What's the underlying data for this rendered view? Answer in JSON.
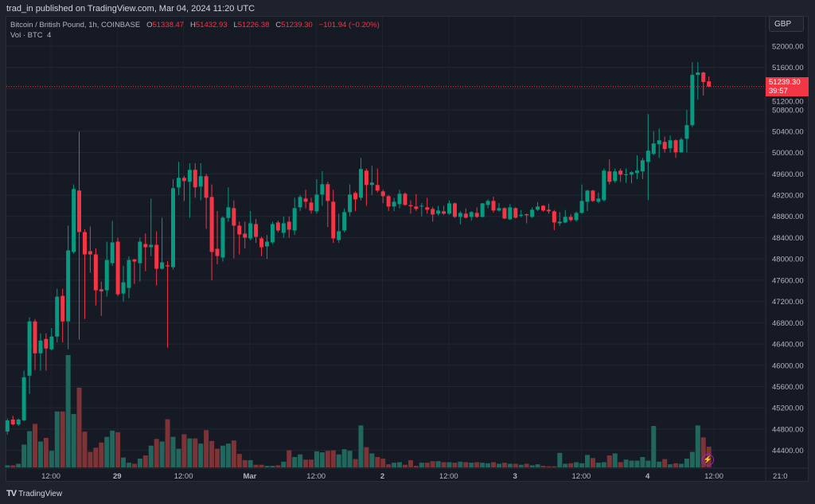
{
  "header": {
    "published": "trad_in published on TradingView.com, Mar 04, 2024 11:20 UTC"
  },
  "legend": {
    "symbol": "Bitcoin / British Pound, 1h, COINBASE",
    "o_label": "O",
    "o": "51338.47",
    "h_label": "H",
    "h": "51432.93",
    "l_label": "L",
    "l": "51226.38",
    "c_label": "C",
    "c": "51239.30",
    "change": "−101.94 (−0.20%)",
    "vol_label": "Vol · BTC",
    "vol": "4"
  },
  "currency_button": "GBP",
  "last_price": {
    "price": "51239.30",
    "countdown": "39:57"
  },
  "footer": {
    "brand": "TradingView",
    "brand_icon": "tradingview-logo-icon"
  },
  "colors": {
    "up": "#089981",
    "down": "#f23645",
    "up_vol": "#22675e",
    "down_vol": "#7d3436",
    "background": "#161a25",
    "alert_icon": "#9c27b0"
  },
  "icons": {
    "replay": "lightning-icon"
  },
  "chart_data": {
    "type": "candlestick",
    "interval": "1h",
    "ylim": [
      44250,
      52300
    ],
    "grid": true,
    "y_ticks": [
      52000,
      51600,
      51200,
      50800,
      50400,
      50000,
      49600,
      49200,
      48800,
      48400,
      48000,
      47600,
      47200,
      46800,
      46400,
      46000,
      45600,
      45200,
      44800,
      44400
    ],
    "y_tick_labels": [
      "52000.00",
      "51600.00",
      "51200.00",
      "50800.00",
      "50400.00",
      "50000.00",
      "49600.00",
      "49200.00",
      "48800.00",
      "48400.00",
      "48000.00",
      "47600.00",
      "47200.00",
      "46800.00",
      "46400.00",
      "46000.00",
      "45600.00",
      "45200.00",
      "44800.00",
      "44400.00"
    ],
    "x_tick_labels": [
      "12:00",
      "29",
      "12:00",
      "Mar",
      "12:00",
      "2",
      "12:00",
      "3",
      "12:00",
      "4",
      "12:00",
      "21:0"
    ],
    "x_tick_hours": [
      8,
      20,
      32,
      44,
      56,
      68,
      80,
      92,
      104,
      116,
      128,
      137
    ],
    "candles": [
      [
        44755,
        45000,
        44700,
        44965
      ],
      [
        44980,
        45050,
        44870,
        44890
      ],
      [
        44890,
        45000,
        44860,
        44980
      ],
      [
        44965,
        45900,
        44950,
        45775
      ],
      [
        45805,
        46900,
        45460,
        46825
      ],
      [
        46825,
        46870,
        45910,
        46225
      ],
      [
        46225,
        46600,
        45900,
        46465
      ],
      [
        46495,
        46600,
        45900,
        46315
      ],
      [
        46300,
        46700,
        46280,
        46540
      ],
      [
        46540,
        47440,
        46430,
        47290
      ],
      [
        47305,
        47440,
        46430,
        46825
      ],
      [
        46825,
        48625,
        46300,
        48160
      ],
      [
        48130,
        49400,
        48100,
        49315
      ],
      [
        49285,
        50395,
        46480,
        48505
      ],
      [
        48505,
        48560,
        46870,
        48085
      ],
      [
        48145,
        48610,
        47740,
        48085
      ],
      [
        48085,
        48200,
        47125,
        47410
      ],
      [
        47430,
        47575,
        46930,
        47390
      ],
      [
        47410,
        48325,
        47290,
        47980
      ],
      [
        47920,
        48715,
        47870,
        48310
      ],
      [
        48325,
        48400,
        47300,
        47335
      ],
      [
        47350,
        47870,
        47200,
        47560
      ],
      [
        47455,
        48050,
        47260,
        47980
      ],
      [
        47990,
        48000,
        47530,
        47950
      ],
      [
        47920,
        48400,
        47575,
        48325
      ],
      [
        48280,
        48475,
        47770,
        48220
      ],
      [
        48220,
        49135,
        48050,
        48265
      ],
      [
        48265,
        48520,
        47500,
        47815
      ],
      [
        47815,
        48775,
        47800,
        47935
      ],
      [
        47880,
        47960,
        46330,
        47860
      ],
      [
        47845,
        49500,
        47800,
        49330
      ],
      [
        49345,
        49825,
        49200,
        49525
      ],
      [
        49525,
        49560,
        49090,
        49465
      ],
      [
        49450,
        49800,
        48775,
        49675
      ],
      [
        49675,
        49800,
        49150,
        49345
      ],
      [
        49360,
        49800,
        49100,
        49555
      ],
      [
        49555,
        49600,
        48565,
        49150
      ],
      [
        49165,
        49400,
        47600,
        48130
      ],
      [
        48190,
        48900,
        47900,
        48055
      ],
      [
        48025,
        48800,
        47950,
        48775
      ],
      [
        48770,
        49345,
        48700,
        48970
      ],
      [
        48955,
        49100,
        48010,
        48625
      ],
      [
        48625,
        48700,
        48085,
        48460
      ],
      [
        48475,
        48700,
        48200,
        48400
      ],
      [
        48385,
        48900,
        48350,
        48670
      ],
      [
        48655,
        48750,
        48300,
        48415
      ],
      [
        48385,
        48420,
        48050,
        48220
      ],
      [
        48235,
        48450,
        48000,
        48325
      ],
      [
        48310,
        48700,
        48280,
        48655
      ],
      [
        48685,
        48720,
        48500,
        48535
      ],
      [
        48490,
        48800,
        48400,
        48670
      ],
      [
        48700,
        48800,
        48400,
        48550
      ],
      [
        48535,
        49150,
        48450,
        48955
      ],
      [
        48970,
        49200,
        48900,
        49165
      ],
      [
        49135,
        49300,
        48950,
        49075
      ],
      [
        49060,
        49150,
        48850,
        48910
      ],
      [
        48895,
        49500,
        48850,
        49210
      ],
      [
        49210,
        49650,
        49000,
        49405
      ],
      [
        49405,
        49450,
        48600,
        49090
      ],
      [
        49075,
        49300,
        48300,
        48385
      ],
      [
        48355,
        48850,
        48300,
        48520
      ],
      [
        48535,
        48950,
        48500,
        48880
      ],
      [
        48880,
        49400,
        48800,
        49210
      ],
      [
        49240,
        49270,
        48900,
        49120
      ],
      [
        49150,
        49900,
        49100,
        49690
      ],
      [
        49660,
        49700,
        49000,
        49390
      ],
      [
        49390,
        49750,
        49200,
        49435
      ],
      [
        49390,
        49700,
        49250,
        49285
      ],
      [
        49270,
        49300,
        49050,
        49180
      ],
      [
        49180,
        49200,
        48900,
        48985
      ],
      [
        48985,
        49150,
        48900,
        49075
      ],
      [
        49030,
        49300,
        48950,
        49225
      ],
      [
        49225,
        49250,
        49000,
        49015
      ],
      [
        49010,
        49100,
        48850,
        48990
      ],
      [
        48985,
        49220,
        48900,
        48940
      ],
      [
        48985,
        49050,
        48800,
        49000
      ],
      [
        48970,
        49150,
        48850,
        48925
      ],
      [
        48940,
        48980,
        48700,
        48835
      ],
      [
        48850,
        49000,
        48820,
        48910
      ],
      [
        48895,
        49000,
        48830,
        48850
      ],
      [
        48850,
        49100,
        48830,
        49045
      ],
      [
        49045,
        49060,
        48770,
        48790
      ],
      [
        48790,
        48900,
        48650,
        48865
      ],
      [
        48850,
        48950,
        48760,
        48775
      ],
      [
        48790,
        48900,
        48720,
        48880
      ],
      [
        48865,
        48970,
        48770,
        48790
      ],
      [
        48790,
        49050,
        48780,
        49045
      ],
      [
        49015,
        49120,
        48950,
        49090
      ],
      [
        49090,
        49170,
        48870,
        48910
      ],
      [
        48910,
        49050,
        48890,
        48955
      ],
      [
        48955,
        48970,
        48750,
        48760
      ],
      [
        48745,
        49030,
        48730,
        48970
      ],
      [
        48955,
        48970,
        48760,
        48775
      ],
      [
        48810,
        48920,
        48780,
        48830
      ],
      [
        48840,
        48850,
        48670,
        48820
      ],
      [
        48790,
        48970,
        48770,
        48925
      ],
      [
        48925,
        49070,
        48900,
        48985
      ],
      [
        49000,
        49010,
        48890,
        48910
      ],
      [
        48925,
        49040,
        48850,
        48895
      ],
      [
        48895,
        48920,
        48540,
        48685
      ],
      [
        48670,
        48880,
        48620,
        48700
      ],
      [
        48685,
        48920,
        48670,
        48790
      ],
      [
        48790,
        48840,
        48700,
        48730
      ],
      [
        48730,
        48890,
        48700,
        48865
      ],
      [
        48865,
        49400,
        48850,
        49090
      ],
      [
        49075,
        49300,
        48900,
        49285
      ],
      [
        49285,
        49300,
        49070,
        49090
      ],
      [
        49075,
        49250,
        49050,
        49135
      ],
      [
        49105,
        49700,
        49080,
        49660
      ],
      [
        49645,
        49870,
        49400,
        49450
      ],
      [
        49465,
        49700,
        49430,
        49645
      ],
      [
        49660,
        49700,
        49450,
        49585
      ],
      [
        49575,
        49700,
        49430,
        49590
      ],
      [
        49585,
        49650,
        49420,
        49630
      ],
      [
        49615,
        49950,
        49500,
        49660
      ],
      [
        49645,
        49900,
        49500,
        49855
      ],
      [
        49825,
        50725,
        49105,
        50035
      ],
      [
        49975,
        50400,
        49950,
        50170
      ],
      [
        50155,
        50450,
        49900,
        50230
      ],
      [
        50200,
        50300,
        50000,
        50065
      ],
      [
        50080,
        50320,
        50000,
        50230
      ],
      [
        50230,
        50250,
        49900,
        50005
      ],
      [
        50005,
        50280,
        49990,
        50245
      ],
      [
        50260,
        50800,
        50000,
        50515
      ],
      [
        50515,
        51700,
        50480,
        51460
      ],
      [
        51460,
        51700,
        50995,
        51505
      ],
      [
        51505,
        51520,
        51070,
        51325
      ],
      [
        51338.47,
        51432.93,
        51226.38,
        51239.3
      ]
    ],
    "volume": [
      0.4,
      0.4,
      0.7,
      4.4,
      7,
      8.4,
      5,
      5.7,
      3.2,
      10.8,
      10.8,
      21.7,
      10.3,
      15.4,
      6.9,
      3,
      3.8,
      4.8,
      5.9,
      7.1,
      6.8,
      1.9,
      0.9,
      0.7,
      1.7,
      2.3,
      4.2,
      5.5,
      5,
      9.3,
      5.9,
      3.6,
      6.4,
      5.6,
      5.6,
      4.6,
      7.2,
      5.1,
      3.6,
      4.2,
      4.6,
      5.2,
      2.6,
      1.4,
      1.4,
      0.5,
      0.5,
      0.3,
      0.3,
      0.4,
      1.1,
      3.3,
      2,
      2.5,
      1.5,
      1.5,
      3.1,
      2.9,
      3.2,
      3.3,
      2.5,
      3.5,
      3.2,
      1.6,
      8.1,
      3.9,
      2.7,
      2,
      1.7,
      0.6,
      0.9,
      1,
      0.5,
      1.4,
      0.3,
      0.9,
      0.9,
      1.2,
      1.2,
      1,
      1,
      0.9,
      1.1,
      1,
      0.9,
      1,
      0.9,
      0.8,
      1,
      0.7,
      0.9,
      0.7,
      0.7,
      0.5,
      0.7,
      0.4,
      0.6,
      0.3,
      0.2,
      0.2,
      2.8,
      0.7,
      0.8,
      1,
      0.8,
      2.4,
      1.8,
      0.9,
      1,
      2.3,
      2.7,
      1,
      1.5,
      1.3,
      1.3,
      2,
      1.3,
      8,
      1.1,
      1.6,
      0.6,
      0.8,
      0.7,
      1.7,
      3,
      8.1,
      5.8,
      4
    ]
  }
}
